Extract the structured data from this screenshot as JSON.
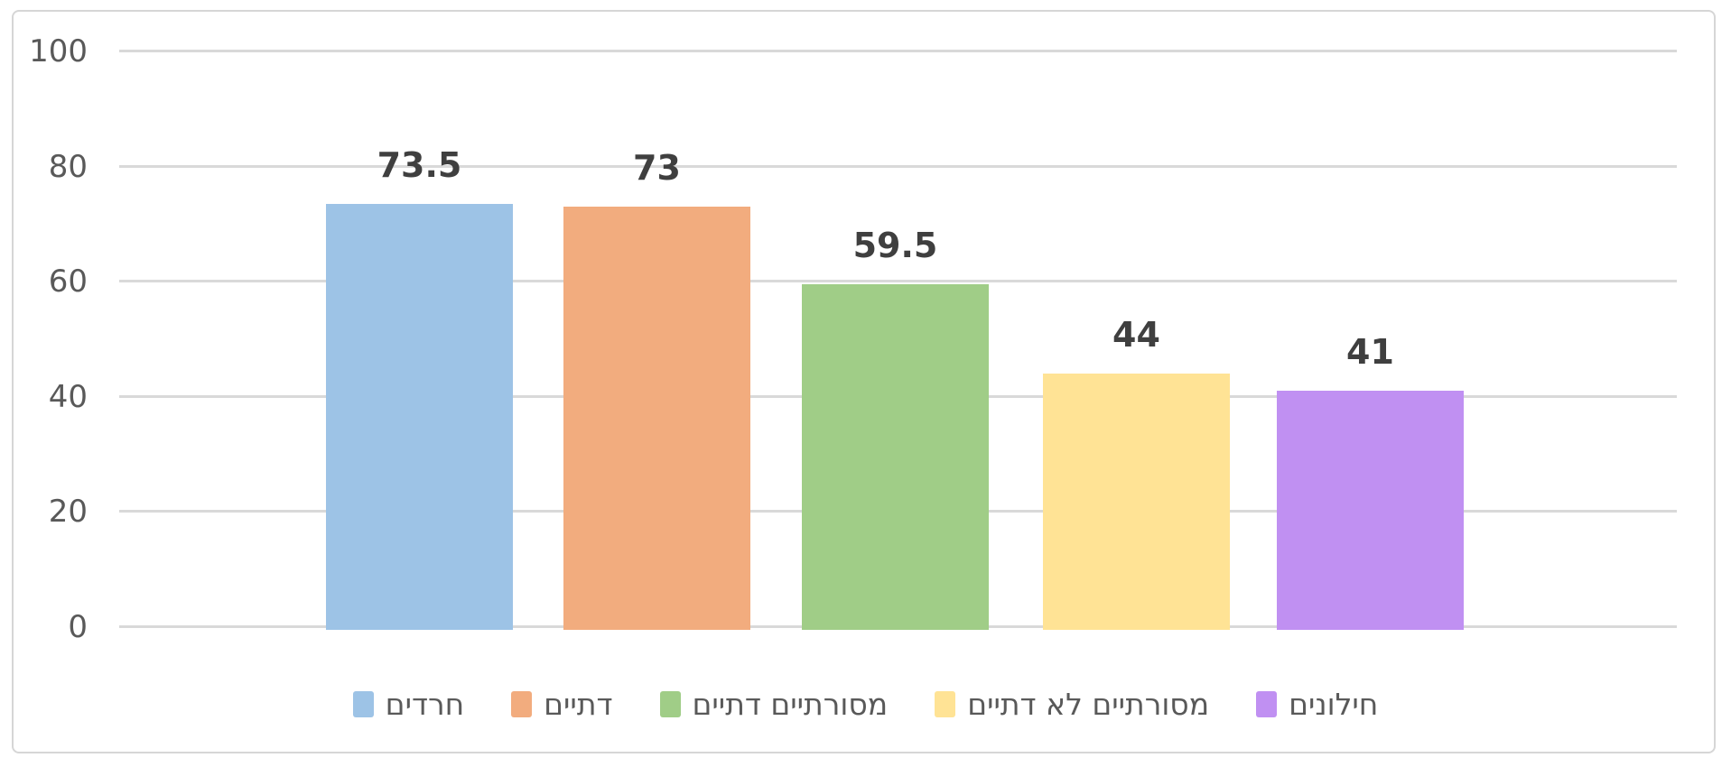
{
  "chart_data": {
    "type": "bar",
    "title": "",
    "xlabel": "",
    "ylabel": "",
    "categories": [
      "חרדים",
      "דתיים",
      "מסורתיים דתיים",
      "מסורתיים לא דתיים",
      "חילונים"
    ],
    "values": [
      73.5,
      73,
      59.5,
      44,
      41
    ],
    "value_labels": [
      "73.5",
      "73",
      "59.5",
      "44",
      "41"
    ],
    "bar_colors": [
      "#9DC3E6",
      "#F2AC7E",
      "#A0CD87",
      "#FFE395",
      "#C090F2"
    ],
    "ylim": [
      0,
      100
    ],
    "yticks": [
      0,
      20,
      40,
      60,
      80,
      100
    ],
    "grid": true,
    "legend_position": "bottom"
  },
  "style": {
    "gridline_color": "#D9D9D9",
    "frame_border_color": "#D6D6D6",
    "axis_text_color": "#595959",
    "data_label_color": "#3F3F3F",
    "legend_text_color": "#595959",
    "background": "#FFFFFF"
  }
}
